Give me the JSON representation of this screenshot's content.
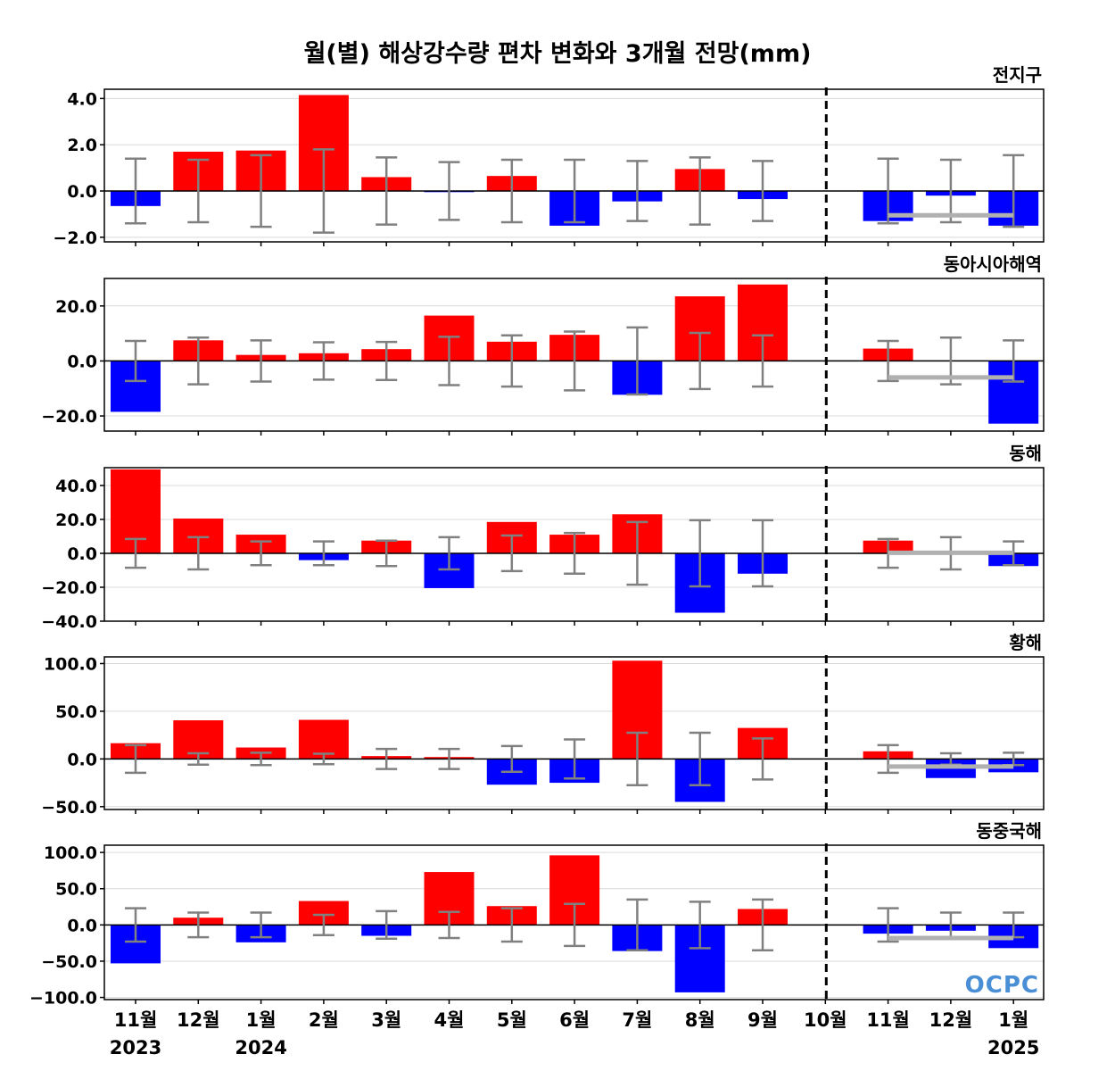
{
  "title": "월(별) 해상강수량 편차 변화와 3개월 전망(mm)",
  "logo": "OCPC",
  "colors": {
    "positive": "#ff0000",
    "negative": "#0000ff",
    "errorbar": "#808080",
    "forecast_line": "#b0b0b0",
    "divider": "#000000"
  },
  "months": [
    "11월",
    "12월",
    "1월",
    "2월",
    "3월",
    "4월",
    "5월",
    "6월",
    "7월",
    "8월",
    "9월",
    "10월",
    "11월",
    "12월",
    "1월"
  ],
  "years": [
    {
      "label": "2023",
      "month_index": 0
    },
    {
      "label": "2024",
      "month_index": 2
    },
    {
      "label": "2025",
      "month_index": 14
    }
  ],
  "forecast_start_index": 11,
  "chart_data": [
    {
      "type": "bar",
      "region": "전지구",
      "ylim": [
        -2.2,
        4.4
      ],
      "yticks": [
        -2.0,
        0.0,
        2.0,
        4.0
      ],
      "ytick_labels": [
        "−2.0",
        "0.0",
        "2.0",
        "4.0"
      ],
      "values": [
        -0.65,
        1.7,
        1.75,
        4.15,
        0.6,
        -0.05,
        0.65,
        -1.5,
        -0.45,
        0.95,
        -0.35,
        0,
        -1.3,
        -0.2,
        -1.5
      ],
      "err": [
        1.4,
        1.35,
        1.55,
        1.8,
        1.45,
        1.25,
        1.35,
        1.35,
        1.3,
        1.45,
        1.3,
        null,
        1.4,
        1.35,
        1.55
      ],
      "forecast_line": -1.05
    },
    {
      "type": "bar",
      "region": "동아시아해역",
      "ylim": [
        -25.5,
        30.0
      ],
      "yticks": [
        -20.0,
        0.0,
        20.0
      ],
      "ytick_labels": [
        "−20.0",
        "0.0",
        "20.0"
      ],
      "values": [
        -18.5,
        7.5,
        2.2,
        2.8,
        4.3,
        16.5,
        7.0,
        9.5,
        -12.3,
        23.5,
        27.8,
        0,
        4.5,
        0,
        -22.8
      ],
      "err": [
        7.3,
        8.5,
        7.5,
        6.8,
        6.9,
        8.8,
        9.3,
        10.7,
        12.2,
        10.2,
        9.3,
        null,
        7.3,
        8.5,
        7.5
      ],
      "forecast_line": -6.0
    },
    {
      "type": "bar",
      "region": "동해",
      "ylim": [
        -40.0,
        50.5
      ],
      "yticks": [
        -40.0,
        -20.0,
        0.0,
        20.0,
        40.0
      ],
      "ytick_labels": [
        "−40.0",
        "−20.0",
        "0.0",
        "20.0",
        "40.0"
      ],
      "values": [
        49.5,
        20.5,
        11.0,
        -4.0,
        7.5,
        -20.5,
        18.5,
        11.0,
        23.0,
        -35.0,
        -12.0,
        0,
        7.5,
        0,
        -7.5
      ],
      "err": [
        8.5,
        9.5,
        7.0,
        7.0,
        7.5,
        9.5,
        10.5,
        12.0,
        18.5,
        19.5,
        19.5,
        null,
        8.5,
        9.5,
        7.0
      ],
      "forecast_line": 0.3
    },
    {
      "type": "bar",
      "region": "황해",
      "ylim": [
        -53.0,
        107.0
      ],
      "yticks": [
        -50.0,
        0.0,
        50.0,
        100.0
      ],
      "ytick_labels": [
        "−50.0",
        "0.0",
        "50.0",
        "100.0"
      ],
      "values": [
        16.5,
        40.5,
        12.0,
        41.0,
        3.0,
        2.0,
        -27.0,
        -25.0,
        103.0,
        -45.0,
        32.5,
        0,
        8.0,
        -20.0,
        -14.0
      ],
      "err": [
        14.5,
        6.0,
        6.5,
        5.5,
        10.5,
        10.5,
        13.5,
        20.5,
        27.5,
        27.5,
        21.5,
        null,
        14.5,
        6.0,
        6.5
      ],
      "forecast_line": -8.0
    },
    {
      "type": "bar",
      "region": "동중국해",
      "ylim": [
        -103.0,
        110.0
      ],
      "yticks": [
        -100.0,
        -50.0,
        0.0,
        50.0,
        100.0
      ],
      "ytick_labels": [
        "−100.0",
        "−50.0",
        "0.0",
        "50.0",
        "100.0"
      ],
      "values": [
        -53.0,
        10.0,
        -24.0,
        33.0,
        -15.0,
        73.0,
        26.0,
        96.0,
        -36.0,
        -93.0,
        22.0,
        0,
        -12.0,
        -8.0,
        -32.0
      ],
      "err": [
        23.0,
        17.0,
        17.0,
        14.0,
        19.0,
        18.0,
        23.0,
        29.0,
        35.0,
        32.0,
        35.0,
        null,
        23.0,
        17.0,
        17.0
      ],
      "forecast_line": -18.0
    }
  ]
}
